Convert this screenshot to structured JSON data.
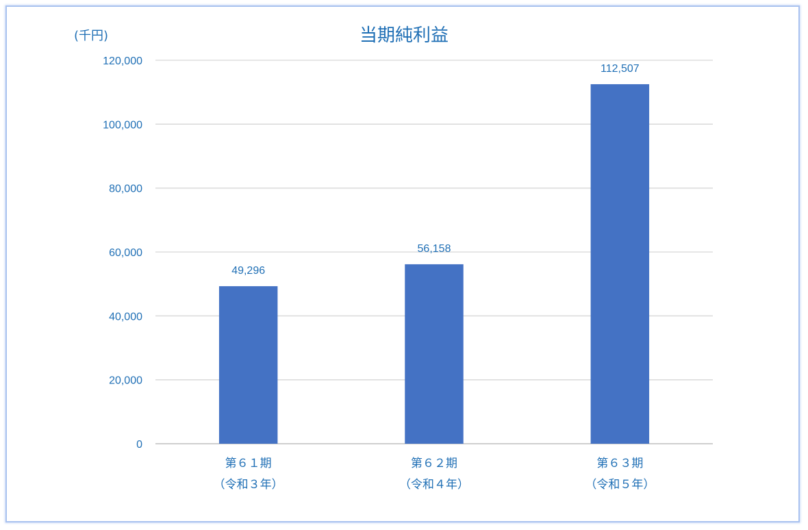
{
  "chart_data": {
    "type": "bar",
    "title": "当期純利益",
    "unit_label": "(千円)",
    "categories": [
      [
        "第６１期",
        "（令和３年）"
      ],
      [
        "第６２期",
        "（令和４年）"
      ],
      [
        "第６３期",
        "（令和５年）"
      ]
    ],
    "values": [
      49296,
      56158,
      112507
    ],
    "value_labels": [
      "49,296",
      "56,158",
      "112,507"
    ],
    "ylim": [
      0,
      120000
    ],
    "yticks": [
      0,
      20000,
      40000,
      60000,
      80000,
      100000,
      120000
    ],
    "ytick_labels": [
      "0",
      "20,000",
      "40,000",
      "60,000",
      "80,000",
      "100,000",
      "120,000"
    ],
    "grid": true,
    "bar_color": "#4472c4"
  }
}
